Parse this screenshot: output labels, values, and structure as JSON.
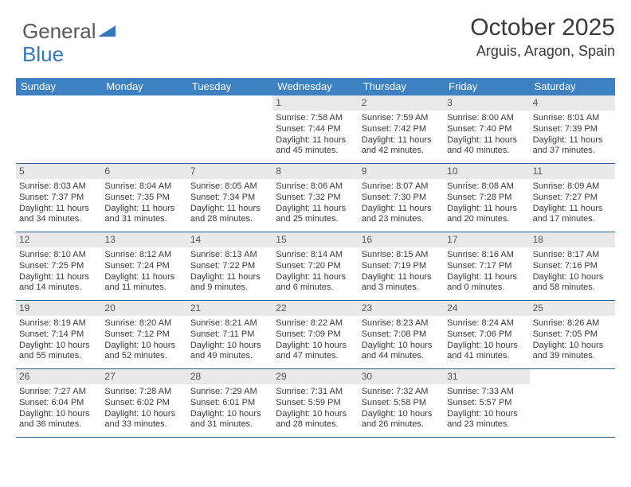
{
  "logo": {
    "part1": "General",
    "part2": "Blue"
  },
  "header": {
    "title": "October 2025",
    "location": "Arguis, Aragon, Spain"
  },
  "colors": {
    "header_bg": "#3d81c2",
    "header_text": "#ffffff",
    "daynum_bg": "#e9e9e9",
    "rule": "#2f5f8f",
    "logo_gray": "#5a5a5a",
    "logo_blue": "#2f78bd"
  },
  "weekdays": [
    "Sunday",
    "Monday",
    "Tuesday",
    "Wednesday",
    "Thursday",
    "Friday",
    "Saturday"
  ],
  "weeks": [
    [
      null,
      null,
      null,
      {
        "d": "1",
        "sr": "Sunrise: 7:58 AM",
        "ss": "Sunset: 7:44 PM",
        "dl1": "Daylight: 11 hours",
        "dl2": "and 45 minutes."
      },
      {
        "d": "2",
        "sr": "Sunrise: 7:59 AM",
        "ss": "Sunset: 7:42 PM",
        "dl1": "Daylight: 11 hours",
        "dl2": "and 42 minutes."
      },
      {
        "d": "3",
        "sr": "Sunrise: 8:00 AM",
        "ss": "Sunset: 7:40 PM",
        "dl1": "Daylight: 11 hours",
        "dl2": "and 40 minutes."
      },
      {
        "d": "4",
        "sr": "Sunrise: 8:01 AM",
        "ss": "Sunset: 7:39 PM",
        "dl1": "Daylight: 11 hours",
        "dl2": "and 37 minutes."
      }
    ],
    [
      {
        "d": "5",
        "sr": "Sunrise: 8:03 AM",
        "ss": "Sunset: 7:37 PM",
        "dl1": "Daylight: 11 hours",
        "dl2": "and 34 minutes."
      },
      {
        "d": "6",
        "sr": "Sunrise: 8:04 AM",
        "ss": "Sunset: 7:35 PM",
        "dl1": "Daylight: 11 hours",
        "dl2": "and 31 minutes."
      },
      {
        "d": "7",
        "sr": "Sunrise: 8:05 AM",
        "ss": "Sunset: 7:34 PM",
        "dl1": "Daylight: 11 hours",
        "dl2": "and 28 minutes."
      },
      {
        "d": "8",
        "sr": "Sunrise: 8:06 AM",
        "ss": "Sunset: 7:32 PM",
        "dl1": "Daylight: 11 hours",
        "dl2": "and 25 minutes."
      },
      {
        "d": "9",
        "sr": "Sunrise: 8:07 AM",
        "ss": "Sunset: 7:30 PM",
        "dl1": "Daylight: 11 hours",
        "dl2": "and 23 minutes."
      },
      {
        "d": "10",
        "sr": "Sunrise: 8:08 AM",
        "ss": "Sunset: 7:28 PM",
        "dl1": "Daylight: 11 hours",
        "dl2": "and 20 minutes."
      },
      {
        "d": "11",
        "sr": "Sunrise: 8:09 AM",
        "ss": "Sunset: 7:27 PM",
        "dl1": "Daylight: 11 hours",
        "dl2": "and 17 minutes."
      }
    ],
    [
      {
        "d": "12",
        "sr": "Sunrise: 8:10 AM",
        "ss": "Sunset: 7:25 PM",
        "dl1": "Daylight: 11 hours",
        "dl2": "and 14 minutes."
      },
      {
        "d": "13",
        "sr": "Sunrise: 8:12 AM",
        "ss": "Sunset: 7:24 PM",
        "dl1": "Daylight: 11 hours",
        "dl2": "and 11 minutes."
      },
      {
        "d": "14",
        "sr": "Sunrise: 8:13 AM",
        "ss": "Sunset: 7:22 PM",
        "dl1": "Daylight: 11 hours",
        "dl2": "and 9 minutes."
      },
      {
        "d": "15",
        "sr": "Sunrise: 8:14 AM",
        "ss": "Sunset: 7:20 PM",
        "dl1": "Daylight: 11 hours",
        "dl2": "and 6 minutes."
      },
      {
        "d": "16",
        "sr": "Sunrise: 8:15 AM",
        "ss": "Sunset: 7:19 PM",
        "dl1": "Daylight: 11 hours",
        "dl2": "and 3 minutes."
      },
      {
        "d": "17",
        "sr": "Sunrise: 8:16 AM",
        "ss": "Sunset: 7:17 PM",
        "dl1": "Daylight: 11 hours",
        "dl2": "and 0 minutes."
      },
      {
        "d": "18",
        "sr": "Sunrise: 8:17 AM",
        "ss": "Sunset: 7:16 PM",
        "dl1": "Daylight: 10 hours",
        "dl2": "and 58 minutes."
      }
    ],
    [
      {
        "d": "19",
        "sr": "Sunrise: 8:19 AM",
        "ss": "Sunset: 7:14 PM",
        "dl1": "Daylight: 10 hours",
        "dl2": "and 55 minutes."
      },
      {
        "d": "20",
        "sr": "Sunrise: 8:20 AM",
        "ss": "Sunset: 7:12 PM",
        "dl1": "Daylight: 10 hours",
        "dl2": "and 52 minutes."
      },
      {
        "d": "21",
        "sr": "Sunrise: 8:21 AM",
        "ss": "Sunset: 7:11 PM",
        "dl1": "Daylight: 10 hours",
        "dl2": "and 49 minutes."
      },
      {
        "d": "22",
        "sr": "Sunrise: 8:22 AM",
        "ss": "Sunset: 7:09 PM",
        "dl1": "Daylight: 10 hours",
        "dl2": "and 47 minutes."
      },
      {
        "d": "23",
        "sr": "Sunrise: 8:23 AM",
        "ss": "Sunset: 7:08 PM",
        "dl1": "Daylight: 10 hours",
        "dl2": "and 44 minutes."
      },
      {
        "d": "24",
        "sr": "Sunrise: 8:24 AM",
        "ss": "Sunset: 7:06 PM",
        "dl1": "Daylight: 10 hours",
        "dl2": "and 41 minutes."
      },
      {
        "d": "25",
        "sr": "Sunrise: 8:26 AM",
        "ss": "Sunset: 7:05 PM",
        "dl1": "Daylight: 10 hours",
        "dl2": "and 39 minutes."
      }
    ],
    [
      {
        "d": "26",
        "sr": "Sunrise: 7:27 AM",
        "ss": "Sunset: 6:04 PM",
        "dl1": "Daylight: 10 hours",
        "dl2": "and 36 minutes."
      },
      {
        "d": "27",
        "sr": "Sunrise: 7:28 AM",
        "ss": "Sunset: 6:02 PM",
        "dl1": "Daylight: 10 hours",
        "dl2": "and 33 minutes."
      },
      {
        "d": "28",
        "sr": "Sunrise: 7:29 AM",
        "ss": "Sunset: 6:01 PM",
        "dl1": "Daylight: 10 hours",
        "dl2": "and 31 minutes."
      },
      {
        "d": "29",
        "sr": "Sunrise: 7:31 AM",
        "ss": "Sunset: 5:59 PM",
        "dl1": "Daylight: 10 hours",
        "dl2": "and 28 minutes."
      },
      {
        "d": "30",
        "sr": "Sunrise: 7:32 AM",
        "ss": "Sunset: 5:58 PM",
        "dl1": "Daylight: 10 hours",
        "dl2": "and 26 minutes."
      },
      {
        "d": "31",
        "sr": "Sunrise: 7:33 AM",
        "ss": "Sunset: 5:57 PM",
        "dl1": "Daylight: 10 hours",
        "dl2": "and 23 minutes."
      },
      null
    ]
  ]
}
